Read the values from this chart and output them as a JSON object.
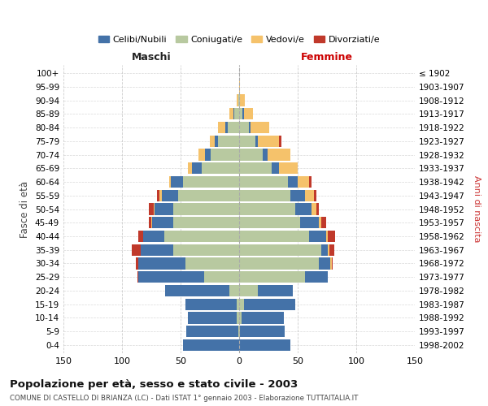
{
  "age_groups": [
    "0-4",
    "5-9",
    "10-14",
    "15-19",
    "20-24",
    "25-29",
    "30-34",
    "35-39",
    "40-44",
    "45-49",
    "50-54",
    "55-59",
    "60-64",
    "65-69",
    "70-74",
    "75-79",
    "80-84",
    "85-89",
    "90-94",
    "95-99",
    "100+"
  ],
  "birth_years": [
    "1998-2002",
    "1993-1997",
    "1988-1992",
    "1983-1987",
    "1978-1982",
    "1973-1977",
    "1968-1972",
    "1963-1967",
    "1958-1962",
    "1953-1957",
    "1948-1952",
    "1943-1947",
    "1938-1942",
    "1933-1937",
    "1928-1932",
    "1923-1927",
    "1918-1922",
    "1913-1917",
    "1908-1912",
    "1903-1907",
    "≤ 1902"
  ],
  "maschi": {
    "celibi": [
      48,
      44,
      42,
      44,
      55,
      56,
      40,
      28,
      18,
      18,
      16,
      14,
      10,
      8,
      5,
      3,
      2,
      1,
      0,
      0,
      0
    ],
    "coniugati": [
      0,
      1,
      2,
      2,
      8,
      30,
      46,
      56,
      64,
      56,
      56,
      52,
      48,
      32,
      24,
      18,
      10,
      4,
      1,
      0,
      0
    ],
    "vedovi": [
      0,
      0,
      0,
      0,
      0,
      0,
      0,
      0,
      0,
      1,
      1,
      2,
      2,
      4,
      6,
      4,
      6,
      3,
      1,
      0,
      0
    ],
    "divorziati": [
      0,
      0,
      0,
      0,
      0,
      1,
      2,
      8,
      4,
      2,
      4,
      2,
      0,
      0,
      0,
      0,
      0,
      0,
      0,
      0,
      0
    ]
  },
  "femmine": {
    "nubili": [
      44,
      38,
      36,
      44,
      30,
      20,
      10,
      6,
      14,
      16,
      14,
      12,
      8,
      6,
      4,
      2,
      2,
      1,
      0,
      0,
      0
    ],
    "coniugate": [
      0,
      1,
      2,
      4,
      16,
      56,
      68,
      70,
      60,
      52,
      48,
      44,
      42,
      28,
      20,
      14,
      8,
      3,
      1,
      0,
      0
    ],
    "vedove": [
      0,
      0,
      0,
      0,
      0,
      0,
      1,
      1,
      2,
      2,
      4,
      8,
      10,
      16,
      20,
      18,
      16,
      8,
      4,
      1,
      0
    ],
    "divorziate": [
      0,
      0,
      0,
      0,
      0,
      0,
      1,
      4,
      6,
      4,
      2,
      2,
      2,
      0,
      0,
      2,
      0,
      0,
      0,
      0,
      0
    ]
  },
  "colors": {
    "celibi": "#4472A8",
    "coniugati": "#B8C9A0",
    "vedovi": "#F5C26B",
    "divorziati": "#C0392B"
  },
  "xlim": 150,
  "title": "Popolazione per età, sesso e stato civile - 2003",
  "subtitle": "COMUNE DI CASTELLO DI BRIANZA (LC) - Dati ISTAT 1° gennaio 2003 - Elaborazione TUTTAITALIA.IT",
  "xlabel_left": "Maschi",
  "xlabel_right": "Femmine",
  "ylabel_left": "Fasce di età",
  "ylabel_right": "Anni di nascita",
  "legend_labels": [
    "Celibi/Nubili",
    "Coniugati/e",
    "Vedovi/e",
    "Divorziati/e"
  ],
  "background_color": "#ffffff",
  "grid_color": "#c8c8c8"
}
